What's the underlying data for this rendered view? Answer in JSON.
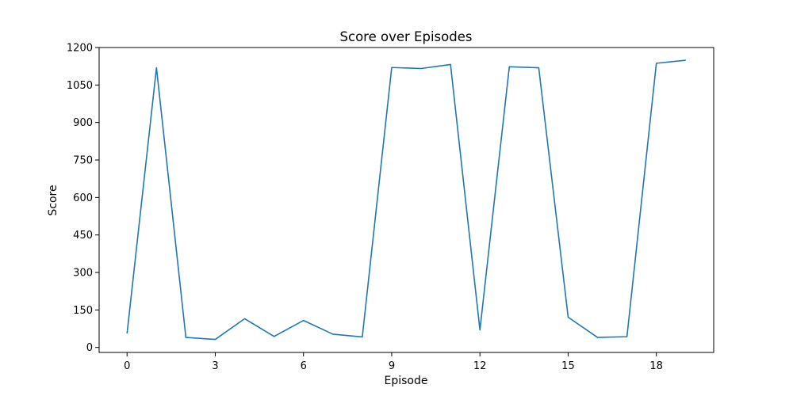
{
  "chart_data": {
    "type": "line",
    "title": "Score over Episodes",
    "xlabel": "Episode",
    "ylabel": "Score",
    "xlim": [
      -0.95,
      19.95
    ],
    "ylim": [
      -20,
      1200
    ],
    "xticks": [
      0,
      3,
      6,
      9,
      12,
      15,
      18
    ],
    "yticks": [
      0,
      150,
      300,
      450,
      600,
      750,
      900,
      1050,
      1200
    ],
    "grid": false,
    "legend": "none",
    "series": [
      {
        "color": "#1f77b4",
        "x": [
          0,
          1,
          2,
          3,
          4,
          5,
          6,
          7,
          8,
          9,
          10,
          11,
          12,
          13,
          14,
          15,
          16,
          17,
          18,
          19
        ],
        "values": [
          56,
          1119,
          40,
          32,
          115,
          44,
          108,
          53,
          42,
          1120,
          1116,
          1132,
          70,
          1123,
          1119,
          121,
          40,
          43,
          1137,
          1149
        ]
      }
    ]
  }
}
